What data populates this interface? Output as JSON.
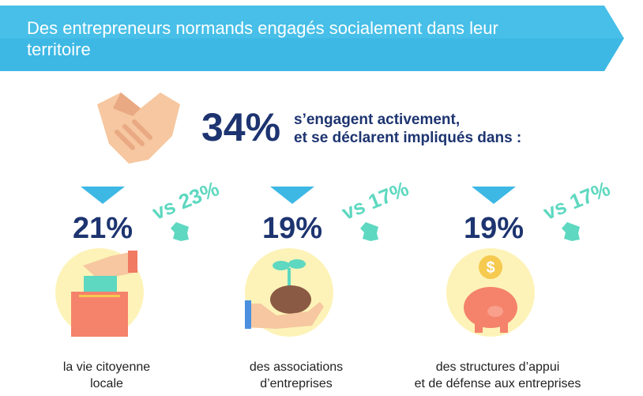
{
  "header": {
    "title": "Des entrepreneurs normands engagés socialement dans leur territoire"
  },
  "headline": {
    "percent": "34%",
    "line1": "s’engagent activement,",
    "line2": "et se déclarent impliqués dans :"
  },
  "items": [
    {
      "percent": "21%",
      "comparison": "vs 23%",
      "caption_line1": "la vie citoyenne",
      "caption_line2": "locale",
      "icon": "ballot-box-icon"
    },
    {
      "percent": "19%",
      "comparison": "vs 17%",
      "caption_line1": "des associations",
      "caption_line2": "d’entreprises",
      "icon": "plant-in-hand-icon"
    },
    {
      "percent": "19%",
      "comparison": "vs 17%",
      "caption_line1": "des structures d’appui",
      "caption_line2": "et de défense aux entreprises",
      "icon": "piggy-bank-icon"
    }
  ],
  "colors": {
    "banner": "#47bfe8",
    "navy": "#1d3470",
    "teal": "#5ed8c0",
    "circle": "#fdf3b8"
  }
}
